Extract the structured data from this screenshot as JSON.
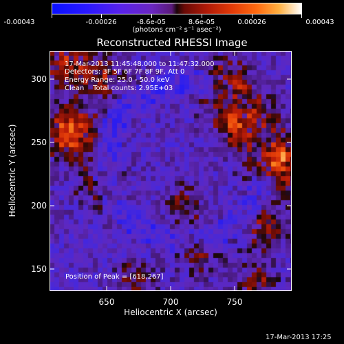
{
  "colorbar": {
    "tick_labels": [
      "-0.00043",
      "-0.00026",
      "-8.6e-05",
      "8.6e-05",
      "0.00026",
      "0.00043"
    ],
    "units_label": "(photons cm⁻² s⁻¹ asec⁻²)",
    "colors": [
      "#0a10ff",
      "#5a22e8",
      "#1a0508",
      "#b01a08",
      "#ff6a10",
      "#ffffff"
    ]
  },
  "title": "Reconstructed RHESSI Image",
  "annotations": {
    "time_range": "17-Mar-2013 11:45:48.000 to 11:47:32.000",
    "detectors": "Detectors: 3F 5F 6F 7F 8F 9F, Att 0",
    "energy_range": "Energy Range: 25.0 - 50.0 keV",
    "clean_counts": "Clean    Total counts: 2.95E+03",
    "peak_position": "Position of Peak = [618,267]"
  },
  "axes": {
    "xlabel": "Heliocentric X (arcsec)",
    "ylabel": "Heliocentric Y (arcsec)",
    "xticks": [
      "650",
      "700",
      "750"
    ],
    "yticks": [
      "300",
      "250",
      "200",
      "150"
    ]
  },
  "timestamp": "17-Mar-2013 17:25",
  "chart_data": {
    "type": "heatmap",
    "title": "Reconstructed RHESSI Image",
    "xlabel": "Heliocentric X (arcsec)",
    "ylabel": "Heliocentric Y (arcsec)",
    "xlim": [
      604,
      794
    ],
    "ylim": [
      132,
      320
    ],
    "xticks": [
      650,
      700,
      750
    ],
    "yticks": [
      150,
      200,
      250,
      300
    ],
    "color_range": [
      -0.00043,
      0.00043
    ],
    "peak_position": [
      618,
      267
    ],
    "grid": false
  }
}
